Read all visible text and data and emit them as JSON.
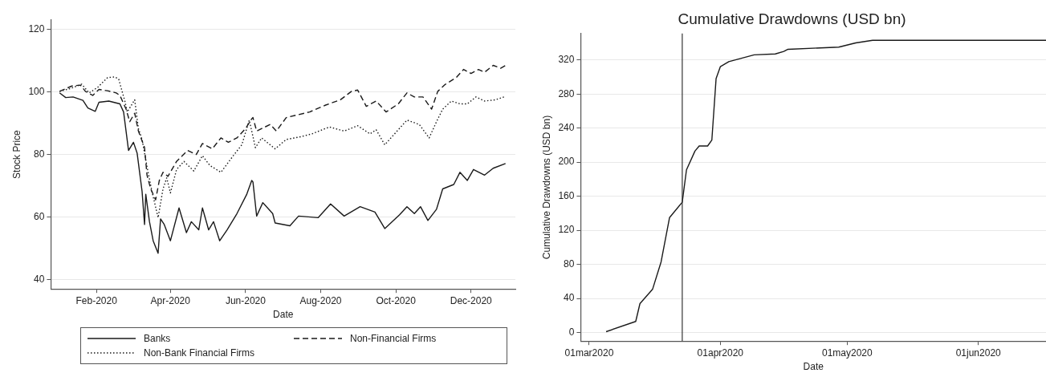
{
  "chart_data": [
    {
      "type": "line",
      "xlabel": "Date",
      "ylabel": "Stock Price",
      "xlim": [
        "2019-12-26",
        "2021-01-06"
      ],
      "ylim": [
        37,
        123
      ],
      "xticks": [
        {
          "value": "2020-02-01",
          "label": "Feb-2020"
        },
        {
          "value": "2020-04-01",
          "label": "Apr-2020"
        },
        {
          "value": "2020-06-01",
          "label": "Jun-2020"
        },
        {
          "value": "2020-08-01",
          "label": "Aug-2020"
        },
        {
          "value": "2020-10-01",
          "label": "Oct-2020"
        },
        {
          "value": "2020-12-01",
          "label": "Dec-2020"
        }
      ],
      "yticks": [
        40,
        60,
        80,
        100,
        120
      ],
      "grid": "y",
      "legend": "bottom",
      "marker": "none",
      "series": [
        {
          "name": "Banks",
          "color": "#1a1a1a",
          "line_style": "solid",
          "x": [
            "2020-01-02",
            "2020-01-07",
            "2020-01-13",
            "2020-01-21",
            "2020-01-25",
            "2020-01-31",
            "2020-02-03",
            "2020-02-11",
            "2020-02-20",
            "2020-02-23",
            "2020-02-27",
            "2020-03-02",
            "2020-03-05",
            "2020-03-09",
            "2020-03-11",
            "2020-03-12",
            "2020-03-15",
            "2020-03-18",
            "2020-03-22",
            "2020-03-24",
            "2020-03-27",
            "2020-04-01",
            "2020-04-08",
            "2020-04-14",
            "2020-04-18",
            "2020-04-24",
            "2020-04-27",
            "2020-05-02",
            "2020-05-06",
            "2020-05-11",
            "2020-05-17",
            "2020-05-25",
            "2020-06-02",
            "2020-06-06",
            "2020-06-07",
            "2020-06-10",
            "2020-06-15",
            "2020-06-23",
            "2020-06-25",
            "2020-07-07",
            "2020-07-14",
            "2020-07-30",
            "2020-08-09",
            "2020-08-20",
            "2020-09-02",
            "2020-09-14",
            "2020-09-22",
            "2020-10-04",
            "2020-10-10",
            "2020-10-16",
            "2020-10-21",
            "2020-10-27",
            "2020-11-03",
            "2020-11-08",
            "2020-11-17",
            "2020-11-22",
            "2020-11-28",
            "2020-12-03",
            "2020-12-12",
            "2020-12-19",
            "2020-12-29"
          ],
          "values": [
            99.7,
            98.2,
            98.4,
            97.3,
            94.9,
            93.8,
            96.7,
            97.1,
            96.2,
            93.6,
            81.3,
            83.9,
            80.4,
            68.2,
            57.6,
            67.3,
            58.5,
            52.4,
            48.4,
            59.4,
            57.6,
            52.4,
            62.9,
            55,
            58.5,
            55.9,
            62.9,
            55.9,
            58.5,
            52.4,
            55.9,
            61.1,
            67.3,
            71.7,
            71.2,
            60.3,
            64.6,
            61.1,
            58.1,
            57.2,
            60.3,
            59.8,
            64.2,
            60.3,
            63.3,
            61.6,
            56.3,
            60.7,
            63.3,
            61.1,
            63.3,
            58.9,
            62.5,
            69,
            70.4,
            74.3,
            71.7,
            75.2,
            73.4,
            75.6,
            77.1
          ]
        },
        {
          "name": "Non-Financial Firms",
          "color": "#1a1a1a",
          "line_style": "dashed",
          "x": [
            "2020-01-02",
            "2020-01-12",
            "2020-01-19",
            "2020-01-23",
            "2020-01-29",
            "2020-02-03",
            "2020-02-10",
            "2020-02-17",
            "2020-02-20",
            "2020-02-25",
            "2020-02-28",
            "2020-03-03",
            "2020-03-06",
            "2020-03-11",
            "2020-03-13",
            "2020-03-16",
            "2020-03-20",
            "2020-03-23",
            "2020-03-26",
            "2020-03-30",
            "2020-04-06",
            "2020-04-15",
            "2020-04-22",
            "2020-04-27",
            "2020-05-05",
            "2020-05-12",
            "2020-05-18",
            "2020-05-25",
            "2020-06-01",
            "2020-06-06",
            "2020-06-07",
            "2020-06-10",
            "2020-06-21",
            "2020-06-26",
            "2020-07-04",
            "2020-07-23",
            "2020-08-05",
            "2020-08-17",
            "2020-08-26",
            "2020-08-31",
            "2020-09-07",
            "2020-09-15",
            "2020-09-23",
            "2020-10-03",
            "2020-10-10",
            "2020-10-16",
            "2020-10-23",
            "2020-10-30",
            "2020-11-04",
            "2020-11-10",
            "2020-11-19",
            "2020-11-25",
            "2020-12-01",
            "2020-12-07",
            "2020-12-12",
            "2020-12-19",
            "2020-12-25",
            "2020-12-29"
          ],
          "values": [
            100.2,
            101.9,
            102.2,
            100.2,
            98.9,
            100.8,
            100.4,
            99.7,
            98.9,
            94.5,
            90.5,
            93.2,
            87.5,
            82.2,
            73.4,
            69,
            65.5,
            71.7,
            74.3,
            73,
            77.8,
            81.3,
            80,
            83.5,
            81.8,
            85.3,
            83.9,
            85.3,
            88.3,
            91.4,
            91.8,
            87.5,
            89.6,
            87.5,
            91.8,
            93.6,
            95.8,
            97.5,
            100.2,
            100.6,
            95.4,
            97.1,
            93.6,
            96.2,
            99.7,
            98.4,
            98.4,
            94.5,
            100.2,
            102.4,
            104.6,
            107.2,
            105.9,
            107.2,
            106.3,
            108.5,
            107.6,
            108.5
          ]
        },
        {
          "name": "Non-Bank Financial Firms",
          "color": "#1a1a1a",
          "line_style": "dotted",
          "x": [
            "2020-01-02",
            "2020-01-11",
            "2020-01-20",
            "2020-01-26",
            "2020-02-02",
            "2020-02-10",
            "2020-02-16",
            "2020-02-19",
            "2020-02-24",
            "2020-02-26",
            "2020-03-03",
            "2020-03-06",
            "2020-03-09",
            "2020-03-13",
            "2020-03-17",
            "2020-03-22",
            "2020-03-26",
            "2020-03-29",
            "2020-04-01",
            "2020-04-06",
            "2020-04-12",
            "2020-04-20",
            "2020-04-27",
            "2020-05-03",
            "2020-05-12",
            "2020-05-22",
            "2020-05-29",
            "2020-06-04",
            "2020-06-09",
            "2020-06-14",
            "2020-06-25",
            "2020-07-04",
            "2020-07-16",
            "2020-07-25",
            "2020-08-08",
            "2020-08-20",
            "2020-08-31",
            "2020-09-10",
            "2020-09-15",
            "2020-09-22",
            "2020-10-02",
            "2020-10-10",
            "2020-10-20",
            "2020-10-28",
            "2020-11-03",
            "2020-11-08",
            "2020-11-15",
            "2020-11-22",
            "2020-11-28",
            "2020-12-05",
            "2020-12-12",
            "2020-12-21",
            "2020-12-29"
          ],
          "values": [
            100.2,
            101.1,
            102.5,
            99.7,
            101.5,
            104.6,
            104.8,
            104.1,
            97.1,
            93.6,
            97.5,
            88.3,
            84.8,
            76.1,
            68.2,
            59.8,
            69,
            72.5,
            67.7,
            75.2,
            77.8,
            74.7,
            79.6,
            76.5,
            74.3,
            79.6,
            83.1,
            91,
            82.2,
            85.3,
            81.8,
            84.8,
            85.7,
            86.6,
            88.8,
            87.5,
            89.2,
            86.6,
            87.9,
            83.1,
            87.5,
            91,
            89.6,
            85.3,
            90.5,
            94.5,
            97.1,
            96.2,
            96.2,
            98.4,
            97.1,
            97.5,
            98.6
          ]
        }
      ]
    },
    {
      "type": "line",
      "title": "Cumulative Drawdowns (USD bn)",
      "xlabel": "Date",
      "ylabel": "Cumulative Drawdowns (USD bn)",
      "xlim": [
        "2020-02-28",
        "2020-06-17"
      ],
      "ylim": [
        -10,
        351
      ],
      "xticks": [
        {
          "value": "2020-03-01",
          "label": "01mar2020"
        },
        {
          "value": "2020-04-01",
          "label": "01apr2020"
        },
        {
          "value": "2020-05-01",
          "label": "01may2020"
        },
        {
          "value": "2020-06-01",
          "label": "01jun2020"
        }
      ],
      "yticks": [
        0,
        40,
        80,
        120,
        160,
        200,
        240,
        280,
        320
      ],
      "grid": "y",
      "legend": false,
      "marker": "none",
      "ref_lines": [
        {
          "axis": "x",
          "value": "2020-03-23",
          "color": "#333333"
        }
      ],
      "series": [
        {
          "color": "#1a1a1a",
          "line_style": "solid",
          "x": [
            "2020-03-05",
            "2020-03-12",
            "2020-03-13",
            "2020-03-16",
            "2020-03-18",
            "2020-03-20",
            "2020-03-23",
            "2020-03-24",
            "2020-03-26",
            "2020-03-27",
            "2020-03-29",
            "2020-03-30",
            "2020-03-31",
            "2020-04-01",
            "2020-04-03",
            "2020-04-06",
            "2020-04-09",
            "2020-04-14",
            "2020-04-16",
            "2020-04-17",
            "2020-04-29",
            "2020-05-03",
            "2020-05-07",
            "2020-06-17"
          ],
          "values": [
            1,
            13,
            34,
            51,
            83,
            135,
            153,
            191,
            213,
            219,
            219,
            226,
            298,
            312,
            318,
            322,
            326,
            327,
            330,
            332.5,
            335,
            340,
            343,
            343
          ]
        }
      ]
    }
  ]
}
